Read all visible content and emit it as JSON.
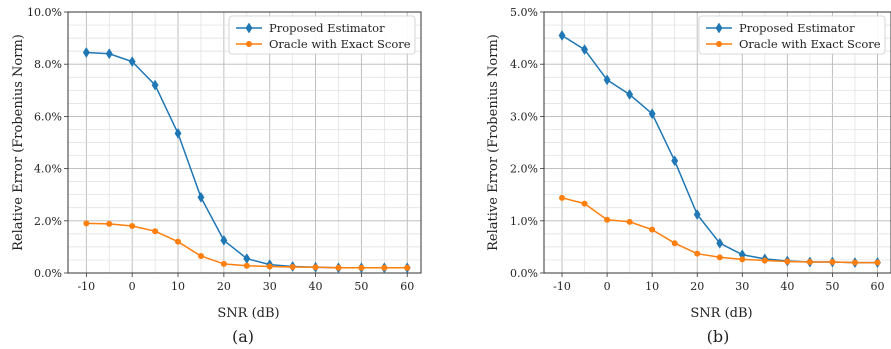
{
  "chart_data": [
    {
      "type": "line",
      "caption": "(a)",
      "xlabel": "SNR (dB)",
      "ylabel": "Relative Error (Frobenius Norm)",
      "x": [
        -10,
        -5,
        0,
        5,
        10,
        15,
        20,
        25,
        30,
        35,
        40,
        45,
        50,
        55,
        60
      ],
      "xticks": [
        -10,
        0,
        10,
        20,
        30,
        40,
        50,
        60
      ],
      "xlim": [
        -14,
        63
      ],
      "ylim": [
        0,
        10
      ],
      "yticks": [
        0,
        2,
        4,
        6,
        8,
        10
      ],
      "ytick_labels": [
        "0.0%",
        "2.0%",
        "4.0%",
        "6.0%",
        "8.0%",
        "10.0%"
      ],
      "grid": true,
      "legend": "top-right",
      "series": [
        {
          "name": "Proposed Estimator",
          "color": "#1f77b4",
          "marker": "diamond",
          "values": [
            8.45,
            8.4,
            8.1,
            7.2,
            5.35,
            2.9,
            1.25,
            0.55,
            0.32,
            0.25,
            0.22,
            0.2,
            0.2,
            0.2,
            0.2
          ]
        },
        {
          "name": "Oracle with Exact Score",
          "color": "#ff7f0e",
          "marker": "circle",
          "values": [
            1.9,
            1.88,
            1.8,
            1.6,
            1.2,
            0.65,
            0.35,
            0.28,
            0.25,
            0.23,
            0.22,
            0.2,
            0.2,
            0.2,
            0.2
          ]
        }
      ]
    },
    {
      "type": "line",
      "caption": "(b)",
      "xlabel": "SNR (dB)",
      "ylabel": "Relative Error (Frobenius Norm)",
      "x": [
        -10,
        -5,
        0,
        5,
        10,
        15,
        20,
        25,
        30,
        35,
        40,
        45,
        50,
        55,
        60
      ],
      "xticks": [
        -10,
        0,
        10,
        20,
        30,
        40,
        50,
        60
      ],
      "xlim": [
        -14,
        63
      ],
      "ylim": [
        0,
        5
      ],
      "yticks": [
        0,
        1,
        2,
        3,
        4,
        5
      ],
      "ytick_labels": [
        "0.0%",
        "1.0%",
        "2.0%",
        "3.0%",
        "4.0%",
        "5.0%"
      ],
      "grid": true,
      "legend": "top-right",
      "series": [
        {
          "name": "Proposed Estimator",
          "color": "#1f77b4",
          "marker": "diamond",
          "values": [
            4.55,
            4.28,
            3.7,
            3.42,
            3.05,
            2.15,
            1.12,
            0.57,
            0.35,
            0.27,
            0.23,
            0.21,
            0.21,
            0.2,
            0.2
          ]
        },
        {
          "name": "Oracle with Exact Score",
          "color": "#ff7f0e",
          "marker": "circle",
          "values": [
            1.44,
            1.33,
            1.02,
            0.98,
            0.83,
            0.57,
            0.37,
            0.3,
            0.26,
            0.24,
            0.22,
            0.21,
            0.21,
            0.2,
            0.2
          ]
        }
      ]
    }
  ]
}
